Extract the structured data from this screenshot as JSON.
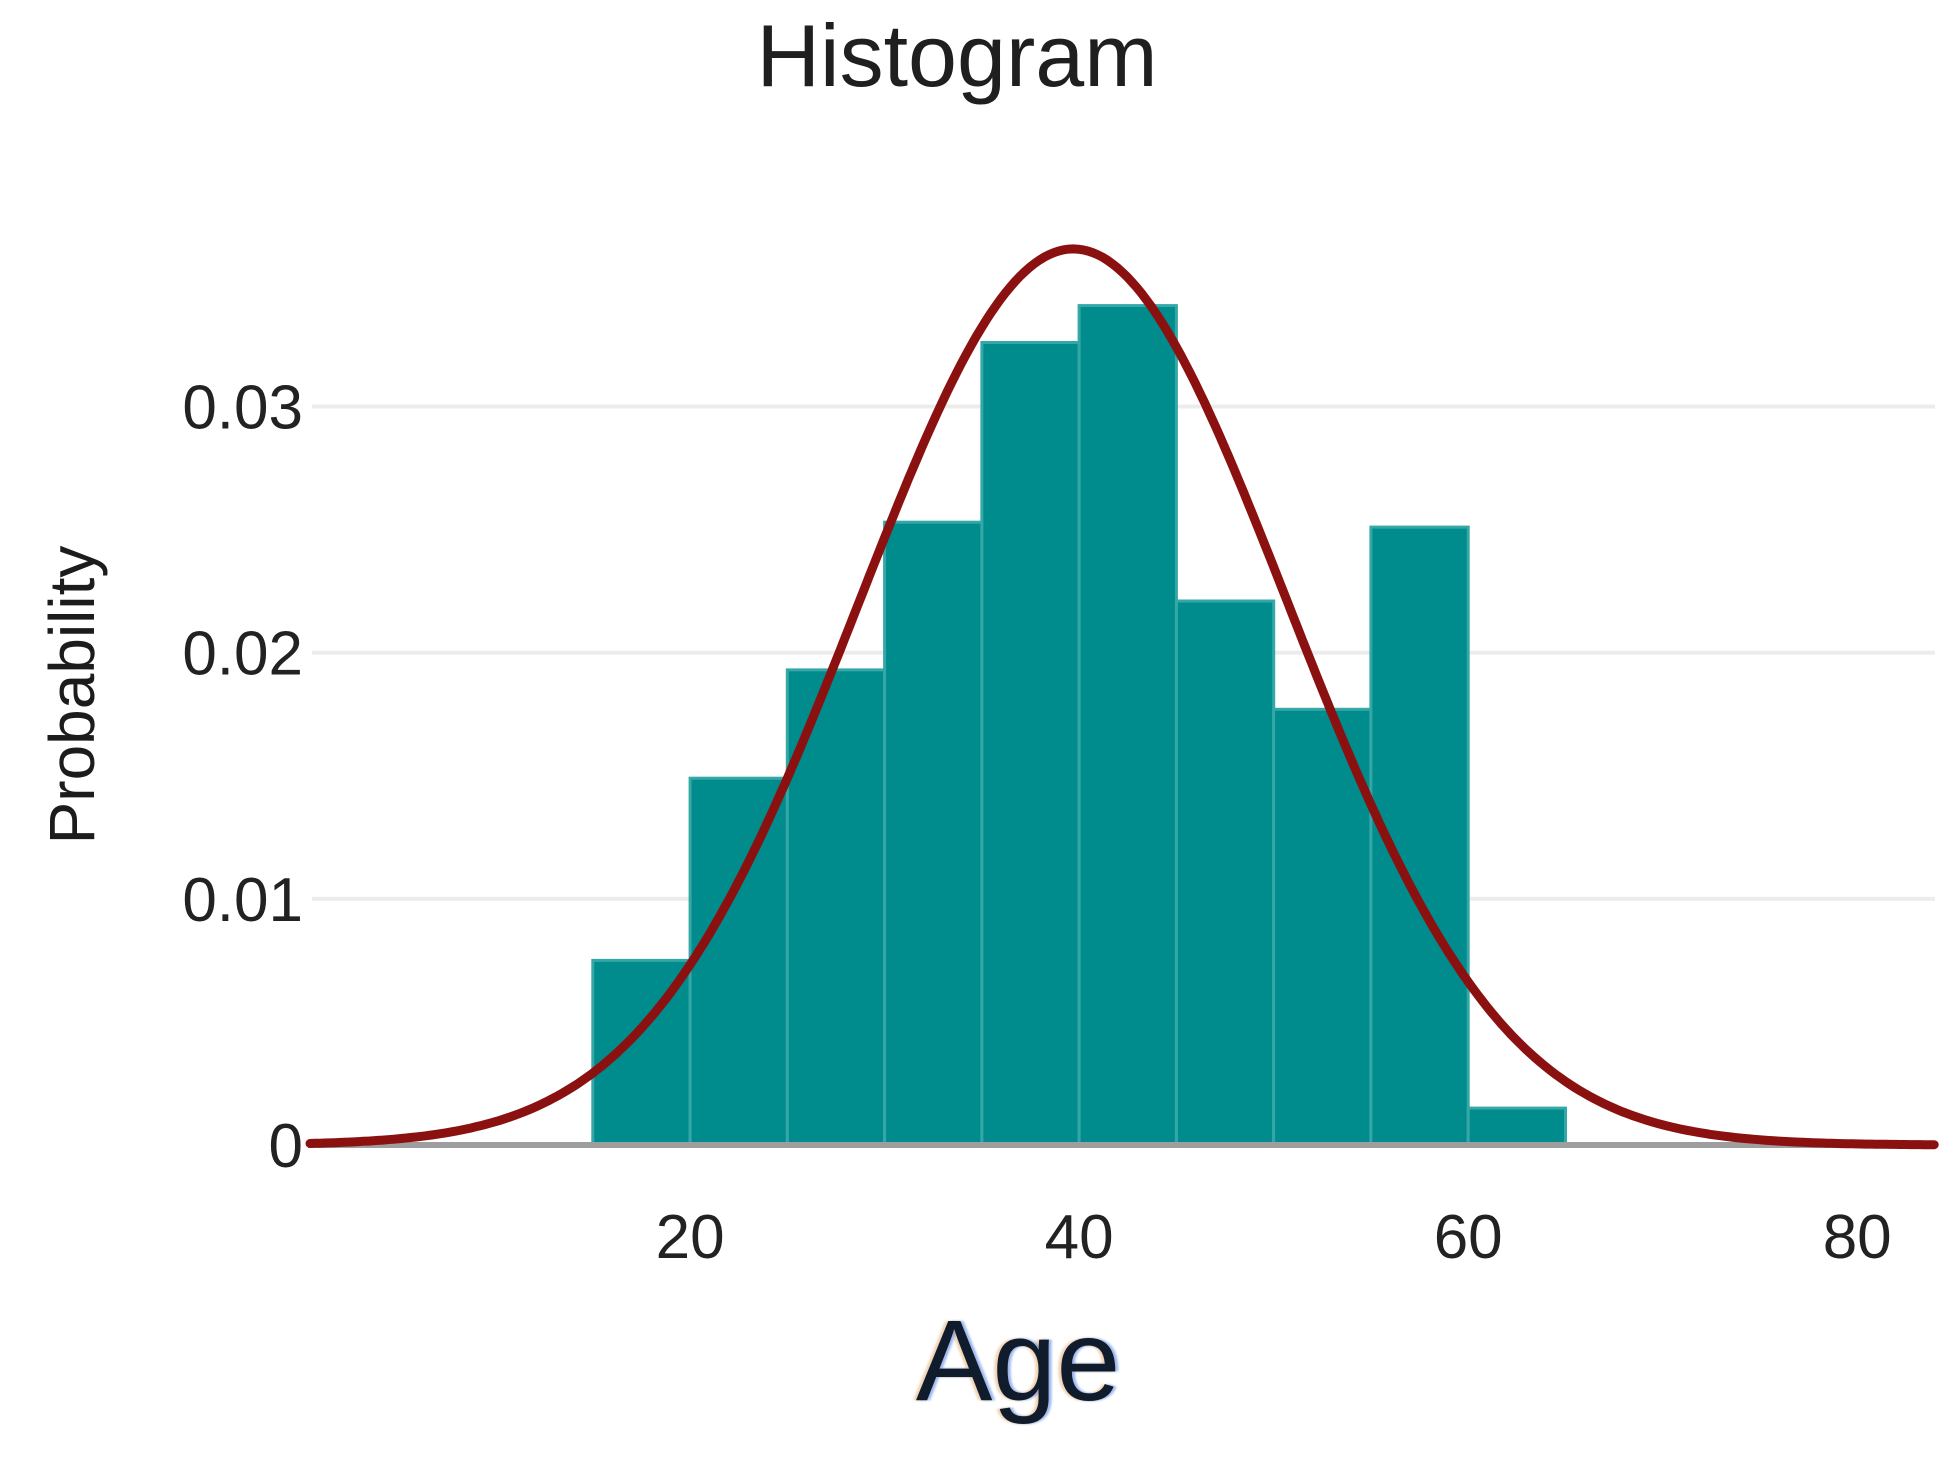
{
  "chart_data": {
    "type": "bar",
    "subtype": "histogram-with-normal-curve",
    "title": "Histogram",
    "xlabel": "Age",
    "ylabel": "Probability",
    "bin_edges": [
      15,
      20,
      25,
      30,
      35,
      40,
      45,
      50,
      55,
      60,
      65
    ],
    "values": [
      0.0075,
      0.0149,
      0.0193,
      0.0253,
      0.0326,
      0.0341,
      0.0221,
      0.0177,
      0.0251,
      0.0015
    ],
    "x_ticks": [
      20,
      40,
      60,
      80
    ],
    "y_ticks": [
      0,
      0.01,
      0.02,
      0.03
    ],
    "xlim": [
      0.46,
      84
    ],
    "ylim": [
      0,
      0.0405
    ],
    "grid": "horizontal-only",
    "legend": "none",
    "curve": {
      "shape": "normal",
      "mean": 39.7,
      "sigma": 11,
      "peak": 0.0364
    }
  },
  "colors": {
    "background": "#ffffff",
    "bar_fill": "#008b8c",
    "bar_edge": "#35a7a7",
    "curve": "#8b1111",
    "axis_line": "#9e9e9e",
    "gridline": "#ececec",
    "title_text": "#1f1f1f",
    "tick_text": "#222222",
    "xlabel_text": "#101c2c"
  }
}
